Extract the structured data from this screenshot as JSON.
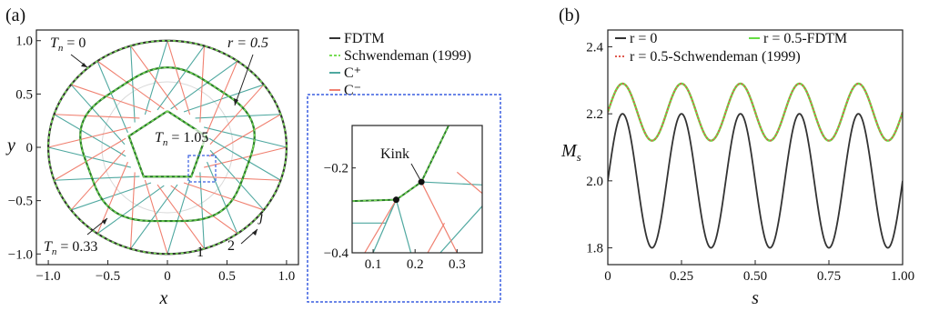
{
  "chart_data": [
    {
      "panel_label": "(a)",
      "type": "line",
      "xlabel": "x",
      "ylabel": "y",
      "xlim": [
        -1.1,
        1.1
      ],
      "ylim": [
        -1.1,
        1.1
      ],
      "xticks": [
        "−1.0",
        "−0.5",
        "0",
        "0.5",
        "1.0"
      ],
      "yticks": [
        "1.0",
        "0.5",
        "0",
        "−0.5",
        "−1.0"
      ],
      "legend": [
        {
          "label": "FDTM",
          "color": "#333333",
          "style": "solid"
        },
        {
          "label": "Schwendeman (1999)",
          "color": "#77dd55",
          "style": "dashed"
        },
        {
          "label": "C⁺",
          "color": "#4fa8a0",
          "style": "solid"
        },
        {
          "label": "C⁻",
          "color": "#f08070",
          "style": "solid"
        }
      ],
      "shock_fronts": [
        {
          "Tn": 0,
          "r_base": 1.0,
          "amp": 0.0
        },
        {
          "Tn": 0.33,
          "r_base": 0.72,
          "amp": 0.04
        },
        {
          "Tn": 1.05,
          "r_base": 0.34,
          "amp": 0.07
        }
      ],
      "pentagon_sides": 5,
      "annotations": {
        "t0": "T",
        "t0_sub": "n",
        "t0_val": " = 0",
        "t1": "T",
        "t1_sub": "n",
        "t1_val": " = 1.05",
        "t2": "T",
        "t2_sub": "n",
        "t2_val": " = 0.33",
        "r": "r = 0.5",
        "n1": "1",
        "n2": "2",
        "j": "j"
      }
    },
    {
      "panel_label": "inset",
      "type": "line",
      "xlim": [
        0.05,
        0.36
      ],
      "ylim": [
        -0.4,
        -0.1
      ],
      "xticks": [
        "0.1",
        "0.2",
        "0.3"
      ],
      "yticks": [
        "−0.2",
        "−0.4"
      ],
      "annotation": "Kink",
      "kink_points": [
        [
          0.155,
          -0.275
        ],
        [
          0.215,
          -0.233
        ]
      ]
    },
    {
      "panel_label": "(b)",
      "type": "line",
      "xlabel": "s",
      "ylabel": "M",
      "ylabel_sub": "s",
      "xlim": [
        0,
        1.0
      ],
      "ylim": [
        1.75,
        2.45
      ],
      "xticks": [
        "0",
        "0.25",
        "0.50",
        "0.75",
        "1.00"
      ],
      "yticks": [
        "2.4",
        "2.2",
        "2.0",
        "1.8"
      ],
      "series": [
        {
          "name": "r = 0",
          "color": "#333333",
          "style": "solid",
          "mean": 2.0,
          "amplitude": 0.2,
          "period": 0.2,
          "x_at_max": 0.05
        },
        {
          "name": "r = 0.5-FDTM",
          "color": "#66dd44",
          "style": "solid",
          "mean": 2.205,
          "amplitude": 0.085,
          "period": 0.2,
          "x_at_max": 0.05
        },
        {
          "name": "r = 0.5-Schwendeman (1999)",
          "color": "#e05a50",
          "style": "dotted",
          "mean": 2.205,
          "amplitude": 0.085,
          "period": 0.2,
          "x_at_max": 0.05
        }
      ]
    }
  ]
}
